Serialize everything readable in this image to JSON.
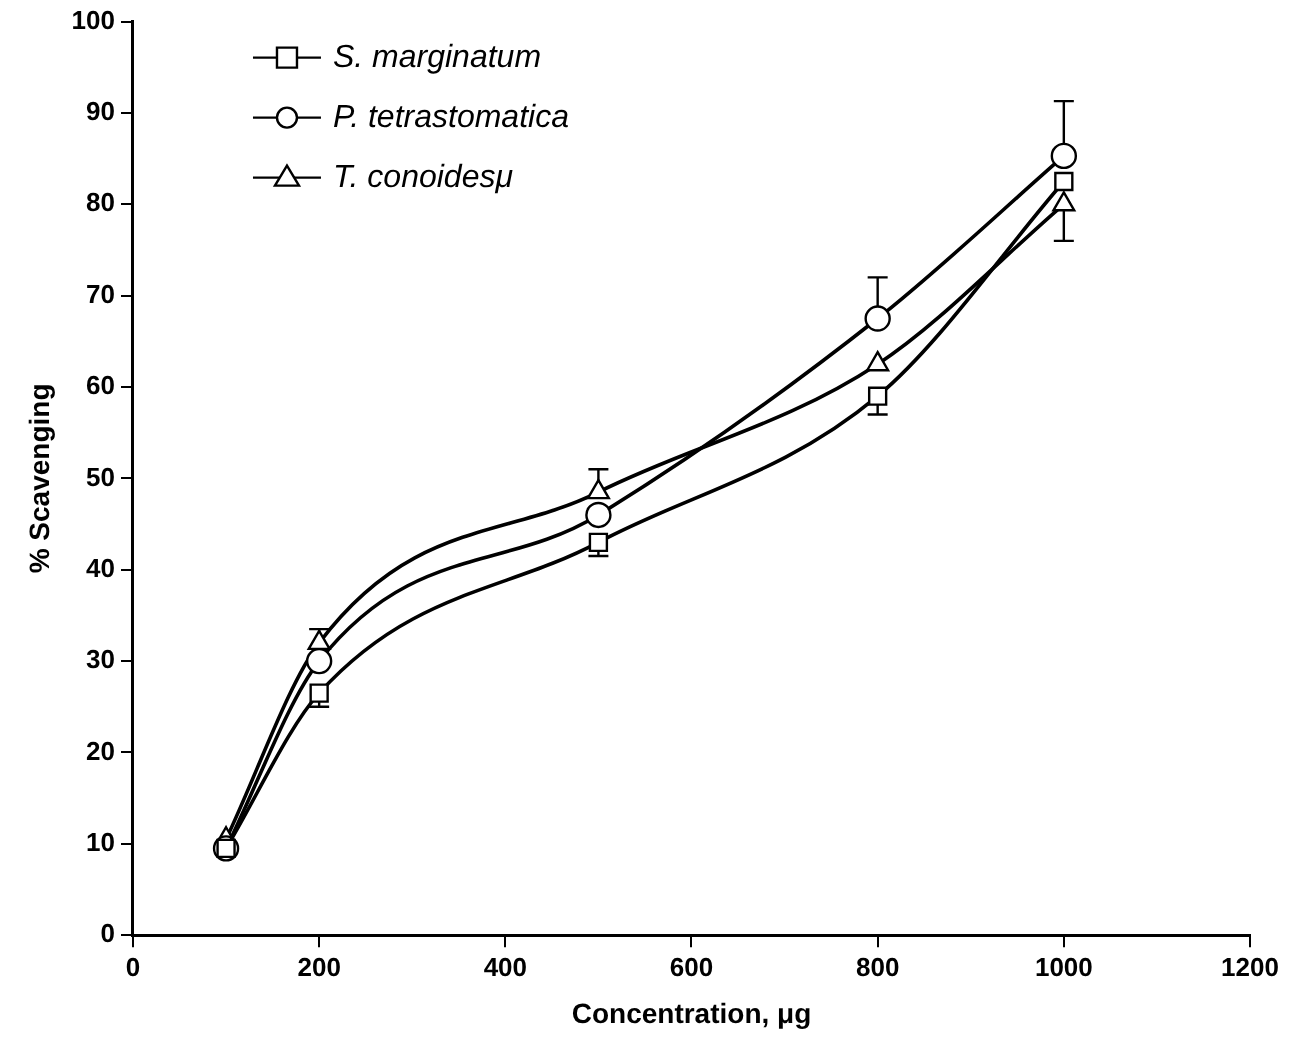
{
  "chart_data": {
    "type": "line",
    "xlabel": "Concentration, μg",
    "ylabel": "% Scavenging",
    "x": [
      100,
      200,
      500,
      800,
      1000
    ],
    "series": [
      {
        "name": "S. marginatum",
        "color": "#000000",
        "marker": "square",
        "values": [
          9.5,
          26.5,
          43,
          59,
          82.5
        ],
        "errors": [
          null,
          [
            25,
            26.5
          ],
          [
            41.5,
            43
          ],
          [
            57,
            59
          ],
          null
        ]
      },
      {
        "name": "P. tetrastomatica",
        "color": "#000000",
        "marker": "circle",
        "values": [
          9.5,
          30,
          46,
          67.5,
          85.3
        ],
        "errors": [
          null,
          null,
          null,
          [
            67.5,
            72
          ],
          [
            85.3,
            91.3
          ]
        ]
      },
      {
        "name": "T. conoidesμ",
        "color": "#000000",
        "marker": "triangle",
        "values": [
          10.5,
          32,
          48.5,
          62.5,
          80
        ],
        "errors": [
          null,
          [
            32,
            33.5
          ],
          [
            48.5,
            51
          ],
          null,
          [
            76,
            80
          ]
        ]
      }
    ],
    "xlim": [
      0,
      1200
    ],
    "xticks": [
      0,
      200,
      400,
      600,
      800,
      1000,
      1200
    ],
    "ylim": [
      0,
      100
    ],
    "yticks": [
      0,
      10,
      20,
      30,
      40,
      50,
      60,
      70,
      80,
      90,
      100
    ],
    "grid": false,
    "legend": "top left"
  }
}
